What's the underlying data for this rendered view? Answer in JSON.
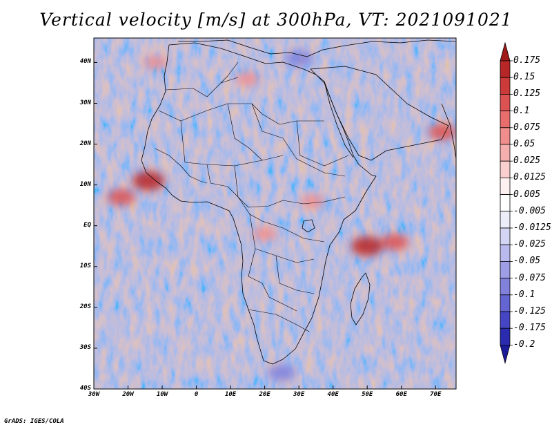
{
  "title": "Vertical velocity [m/s] at 300hPa, VT: 2021091021",
  "credit": "GrADS: IGES/COLA",
  "map": {
    "region": "Africa",
    "lon_range": [
      -30,
      76
    ],
    "lat_range": [
      -40,
      46
    ],
    "lat_ticks": [
      {
        "value": 40,
        "label": "40N"
      },
      {
        "value": 30,
        "label": "30N"
      },
      {
        "value": 20,
        "label": "20N"
      },
      {
        "value": 10,
        "label": "10N"
      },
      {
        "value": 0,
        "label": "EQ"
      },
      {
        "value": -10,
        "label": "10S"
      },
      {
        "value": -20,
        "label": "20S"
      },
      {
        "value": -30,
        "label": "30S"
      },
      {
        "value": -40,
        "label": "40S"
      }
    ],
    "lon_ticks": [
      {
        "value": -30,
        "label": "30W"
      },
      {
        "value": -20,
        "label": "20W"
      },
      {
        "value": -10,
        "label": "10W"
      },
      {
        "value": 0,
        "label": "0"
      },
      {
        "value": 10,
        "label": "10E"
      },
      {
        "value": 20,
        "label": "20E"
      },
      {
        "value": 30,
        "label": "30E"
      },
      {
        "value": 40,
        "label": "40E"
      },
      {
        "value": 50,
        "label": "50E"
      },
      {
        "value": 60,
        "label": "60E"
      },
      {
        "value": 70,
        "label": "70E"
      }
    ],
    "hotspots": [
      {
        "lon": -14,
        "lat": 11,
        "value": 0.15
      },
      {
        "lon": -22,
        "lat": 7,
        "value": 0.1
      },
      {
        "lon": 50,
        "lat": -5,
        "value": 0.15
      },
      {
        "lon": 58,
        "lat": -4,
        "value": 0.1
      },
      {
        "lon": 72,
        "lat": 23,
        "value": 0.1
      },
      {
        "lon": 15,
        "lat": 36,
        "value": 0.05
      },
      {
        "lon": -12,
        "lat": 40,
        "value": 0.05
      },
      {
        "lon": 20,
        "lat": -2,
        "value": 0.05
      },
      {
        "lon": 34,
        "lat": 6,
        "value": 0.05
      },
      {
        "lon": 30,
        "lat": 41,
        "value": -0.1
      },
      {
        "lon": 25,
        "lat": -36,
        "value": -0.1
      }
    ]
  },
  "colorbar": {
    "levels": [
      "0.175",
      "0.15",
      "0.125",
      "0.1",
      "0.075",
      "0.05",
      "0.025",
      "0.0125",
      "0.005",
      "-0.005",
      "-0.0125",
      "-0.025",
      "-0.05",
      "-0.075",
      "-0.1",
      "-0.125",
      "-0.175",
      "-0.2"
    ],
    "colors": [
      "#a01a1a",
      "#b82727",
      "#cc3a3a",
      "#dc5252",
      "#e86e6e",
      "#f08d8d",
      "#f5aeae",
      "#f9cfcf",
      "#fdf0f0",
      "#ffffff",
      "#ededfa",
      "#d4d4f4",
      "#b9b9ed",
      "#9e9ee6",
      "#8181dc",
      "#6464d2",
      "#4646c4",
      "#2b2bb0",
      "#1c1c9a"
    ]
  }
}
